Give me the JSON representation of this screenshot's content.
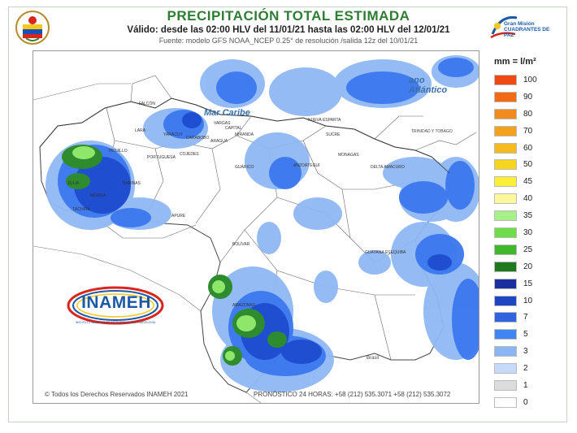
{
  "header": {
    "title": "PRECIPITACIÓN TOTAL ESTIMADA",
    "validity": "Válido: desde las 02:00 HLV del 11/01/21 hasta las 02:00 HLV del 12/01/21",
    "source": "Fuente: modelo GFS NOAA_NCEP 0.25° de resolución /salida 12z del 10/01/21"
  },
  "logos": {
    "right_line1": "Gran Misión",
    "right_line2": "CUADRANTES DE PAZ",
    "inameh": "INAMEH",
    "inameh_sub": "INSTITUTO NACIONAL DE METEOROLOGÍA E HIDROLOGÍA"
  },
  "map": {
    "sea_label": "Mar Caribe",
    "ocean_label": "Océano Atlántico",
    "ocean_label_part1": "ano",
    "ocean_label_part2": "Atlántico",
    "country_labels": {
      "brasil": "Brasil",
      "trinidad": "TRINIDAD Y TOBAGO"
    },
    "state_labels": [
      "ZULIA",
      "FALCÓN",
      "LARA",
      "YARACUY",
      "CARABOBO",
      "ARAGUA",
      "MIRANDA",
      "SUCRE",
      "MONAGAS",
      "ANZOÁTEGUI",
      "GUÁRICO",
      "COJEDES",
      "PORTUGUESA",
      "BARINAS",
      "APURE",
      "BOLÍVAR",
      "AMAZONAS",
      "DELTA AMACURO",
      "TRUJILLO",
      "MÉRIDA",
      "TÁCHIRA",
      "NUEVA ESPARTA",
      "CAPITAL",
      "VARGAS",
      "GUAYANA ESEQUIBA"
    ],
    "colors": {
      "heavy_blue": "#1f4fd0",
      "mid_blue": "#3b78ee",
      "light_blue": "#8fb8f4",
      "green_dark": "#2e8b2e",
      "green_light": "#8ee66b"
    }
  },
  "legend": {
    "title": "mm = l/m²",
    "items": [
      {
        "label": "100",
        "color": "#f04a14"
      },
      {
        "label": "90",
        "color": "#f26b12"
      },
      {
        "label": "80",
        "color": "#f28a1e"
      },
      {
        "label": "70",
        "color": "#f2a21c"
      },
      {
        "label": "60",
        "color": "#f7bb22"
      },
      {
        "label": "50",
        "color": "#f7d51e"
      },
      {
        "label": "45",
        "color": "#fbf037"
      },
      {
        "label": "40",
        "color": "#fcf79a"
      },
      {
        "label": "35",
        "color": "#a7f08a"
      },
      {
        "label": "30",
        "color": "#6fdc49"
      },
      {
        "label": "25",
        "color": "#3fb82b"
      },
      {
        "label": "20",
        "color": "#1f7a1f"
      },
      {
        "label": "15",
        "color": "#1b2f9e"
      },
      {
        "label": "10",
        "color": "#1d46c4"
      },
      {
        "label": "7",
        "color": "#2f63e0"
      },
      {
        "label": "5",
        "color": "#3f86f4"
      },
      {
        "label": "3",
        "color": "#8ab4f4"
      },
      {
        "label": "2",
        "color": "#c7dafa"
      },
      {
        "label": "1",
        "color": "#dcdcdc"
      },
      {
        "label": "0",
        "color": "#ffffff"
      }
    ]
  },
  "footer": {
    "copyright": "© Todos los Derechos Reservados INAMEH 2021",
    "phone": "PRONÓSTICO 24 HORAS: +58 (212) 535.3071 +58 (212) 535.3072"
  }
}
